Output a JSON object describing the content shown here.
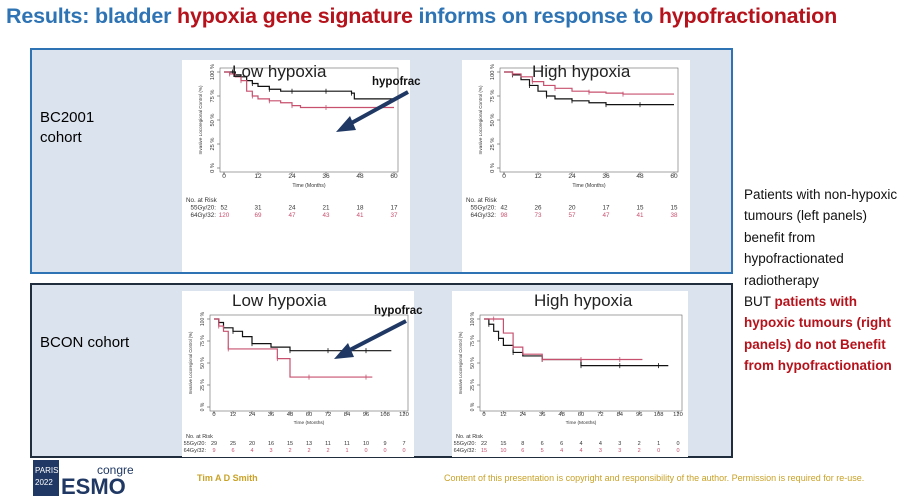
{
  "title": {
    "part1": "Results: bladder ",
    "part2": "hypoxia gene signature",
    "part3": " informs on response to ",
    "part4": "hypofractionation"
  },
  "cohorts": {
    "bc2001": {
      "label": "BC2001\ncohort"
    },
    "bcon": {
      "label": "BCON cohort"
    }
  },
  "annotation": {
    "hypofrac": "hypofrac"
  },
  "note": {
    "text1": "Patients with non-hypoxic tumours (left panels) benefit from hypofractionated radiotherapy",
    "text2": "BUT ",
    "text3": "patients with hypoxic tumours (right panels) do not Benefit from hypofractionation"
  },
  "footer": {
    "paris": "PARIS",
    "year": "2022",
    "esmo": "ESMO",
    "congress": "congress",
    "author": "Tim A D Smith",
    "copyright": "Content of this presentation is copyright and responsibility of the author. Permission is required for re-use."
  },
  "colors": {
    "blue": "#2e74b5",
    "red": "#b5121b",
    "series_a": "#111111",
    "series_b": "#c8506f"
  },
  "chart_data": [
    {
      "id": "bc2001-low",
      "type": "line",
      "title": "Low hypoxia",
      "xlabel": "Time (Months)",
      "ylabel": "Invasive Locoregional Control (%)",
      "xlim": [
        0,
        60
      ],
      "ylim": [
        0,
        100
      ],
      "xticks": [
        "0",
        "12",
        "24",
        "36",
        "48",
        "60"
      ],
      "yticks": [
        "0 %",
        "25 %",
        "50 %",
        "75 %",
        "100 %"
      ],
      "series": [
        {
          "name": "55Gy/20",
          "x": [
            0,
            3,
            4,
            6,
            8,
            10,
            12,
            16,
            20,
            24,
            30,
            36,
            42,
            45,
            46,
            60
          ],
          "y": [
            100,
            100,
            97,
            95,
            91,
            88,
            85,
            82,
            80,
            80,
            80,
            80,
            80,
            78,
            72,
            72
          ]
        },
        {
          "name": "64Gy/32",
          "x": [
            0,
            2,
            4,
            6,
            8,
            10,
            12,
            16,
            20,
            24,
            27,
            36,
            48,
            60
          ],
          "y": [
            100,
            98,
            95,
            91,
            80,
            75,
            72,
            70,
            68,
            65,
            63,
            63,
            63,
            63
          ]
        }
      ],
      "risk_header": "No. at Risk",
      "risk": [
        {
          "name": "55Gy/20:",
          "values": [
            "52",
            "31",
            "24",
            "21",
            "18",
            "17"
          ]
        },
        {
          "name": "64Gy/32:",
          "values": [
            "120",
            "69",
            "47",
            "43",
            "41",
            "37"
          ]
        }
      ]
    },
    {
      "id": "bc2001-high",
      "type": "line",
      "title": "High hypoxia",
      "xlabel": "Time (Months)",
      "ylabel": "Invasive Locoregional Control (%)",
      "xlim": [
        0,
        60
      ],
      "ylim": [
        0,
        100
      ],
      "xticks": [
        "0",
        "12",
        "24",
        "36",
        "48",
        "60"
      ],
      "yticks": [
        "0 %",
        "25 %",
        "50 %",
        "75 %",
        "100 %"
      ],
      "series": [
        {
          "name": "55Gy/20",
          "x": [
            0,
            3,
            6,
            9,
            12,
            15,
            18,
            24,
            30,
            36,
            42,
            48,
            60
          ],
          "y": [
            100,
            97,
            92,
            86,
            80,
            75,
            72,
            70,
            68,
            66,
            66,
            66,
            66
          ]
        },
        {
          "name": "64Gy/32",
          "x": [
            0,
            3,
            6,
            10,
            14,
            18,
            24,
            30,
            36,
            42,
            48,
            60
          ],
          "y": [
            100,
            98,
            95,
            90,
            86,
            83,
            80,
            79,
            78,
            77,
            77,
            77
          ]
        }
      ],
      "risk_header": "No. at Risk",
      "risk": [
        {
          "name": "55Gy/20:",
          "values": [
            "42",
            "26",
            "20",
            "17",
            "15",
            "15"
          ]
        },
        {
          "name": "64Gy/32:",
          "values": [
            "98",
            "73",
            "57",
            "47",
            "41",
            "38"
          ]
        }
      ]
    },
    {
      "id": "bcon-low",
      "type": "line",
      "title": "Low hypoxia",
      "xlabel": "Time (Months)",
      "ylabel": "Invasive Locoregional Control (%)",
      "xlim": [
        0,
        120
      ],
      "ylim": [
        0,
        100
      ],
      "xticks": [
        "0",
        "12",
        "24",
        "36",
        "48",
        "60",
        "72",
        "84",
        "96",
        "108",
        "120"
      ],
      "yticks": [
        "0 %",
        "25 %",
        "50 %",
        "75 %",
        "100 %"
      ],
      "series": [
        {
          "name": "55Gy/20",
          "x": [
            0,
            3,
            6,
            12,
            18,
            24,
            36,
            48,
            60,
            72,
            84,
            96,
            108,
            112
          ],
          "y": [
            100,
            96,
            90,
            86,
            80,
            72,
            68,
            64,
            64,
            64,
            64,
            64,
            64,
            64
          ]
        },
        {
          "name": "64Gy/32",
          "x": [
            0,
            3,
            6,
            9,
            30,
            40,
            48,
            60,
            84,
            96,
            100
          ],
          "y": [
            100,
            92,
            86,
            66,
            66,
            55,
            34,
            34,
            34,
            34,
            34
          ]
        }
      ],
      "risk_header": "No. at Risk",
      "risk": [
        {
          "name": "55Gy/20:",
          "values": [
            "29",
            "25",
            "20",
            "16",
            "15",
            "13",
            "11",
            "11",
            "10",
            "9",
            "7"
          ]
        },
        {
          "name": "64Gy/32:",
          "values": [
            "9",
            "6",
            "4",
            "3",
            "2",
            "2",
            "2",
            "1",
            "0",
            "0",
            "0"
          ]
        }
      ]
    },
    {
      "id": "bcon-high",
      "type": "line",
      "title": "High hypoxia",
      "xlabel": "Time (Months)",
      "ylabel": "Invasive Locoregional Control (%)",
      "xlim": [
        0,
        120
      ],
      "ylim": [
        0,
        100
      ],
      "xticks": [
        "0",
        "12",
        "24",
        "36",
        "48",
        "60",
        "72",
        "84",
        "96",
        "108",
        "120"
      ],
      "yticks": [
        "0 %",
        "25 %",
        "50 %",
        "75 %",
        "100 %"
      ],
      "series": [
        {
          "name": "55Gy/20",
          "x": [
            0,
            3,
            6,
            9,
            12,
            18,
            24,
            36,
            48,
            60,
            72,
            84,
            96,
            108,
            114
          ],
          "y": [
            100,
            94,
            86,
            78,
            70,
            62,
            58,
            54,
            54,
            47,
            47,
            47,
            47,
            47,
            47
          ]
        },
        {
          "name": "64Gy/32",
          "x": [
            0,
            6,
            12,
            18,
            24,
            36,
            48,
            60,
            72,
            84,
            96,
            98
          ],
          "y": [
            100,
            100,
            84,
            68,
            60,
            54,
            54,
            54,
            54,
            54,
            54,
            54
          ]
        }
      ],
      "risk_header": "No. at Risk",
      "risk": [
        {
          "name": "55Gy/20:",
          "values": [
            "22",
            "15",
            "8",
            "6",
            "6",
            "4",
            "4",
            "3",
            "2",
            "1",
            "0"
          ]
        },
        {
          "name": "64Gy/32:",
          "values": [
            "15",
            "10",
            "6",
            "5",
            "4",
            "4",
            "3",
            "3",
            "2",
            "0",
            "0"
          ]
        }
      ]
    }
  ]
}
